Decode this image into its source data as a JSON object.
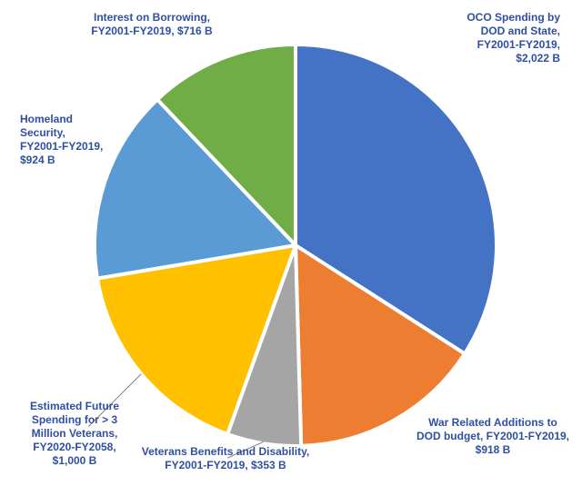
{
  "chart_data": {
    "type": "pie",
    "title": "",
    "legend": "none",
    "slices": [
      {
        "key": "oco",
        "value": 2022,
        "color": "#4472C4",
        "label_lines": [
          "OCO Spending by",
          "DOD and State,",
          "FY2001-FY2019,",
          "$2,022 B"
        ]
      },
      {
        "key": "war_related",
        "value": 918,
        "color": "#ED7D31",
        "label_lines": [
          "War Related Additions to",
          "DOD budget, FY2001-FY2019,",
          "$918 B"
        ]
      },
      {
        "key": "veterans_benefits",
        "value": 353,
        "color": "#A5A5A5",
        "label_lines": [
          "Veterans Benefits and Disability,",
          "FY2001-FY2019,  $353 B"
        ]
      },
      {
        "key": "future_veterans",
        "value": 1000,
        "color": "#FFC000",
        "label_lines": [
          "Estimated Future",
          "Spending for > 3",
          "Million Veterans,",
          "FY2020-FY2058,",
          "$1,000 B"
        ]
      },
      {
        "key": "homeland",
        "value": 924,
        "color": "#5B9BD5",
        "label_lines": [
          "Homeland",
          "Security,",
          "FY2001-FY2019,",
          "$924 B"
        ]
      },
      {
        "key": "interest",
        "value": 716,
        "color": "#70AD47",
        "label_lines": [
          "Interest on Borrowing,",
          "FY2001-FY2019,  $716 B"
        ]
      }
    ]
  }
}
